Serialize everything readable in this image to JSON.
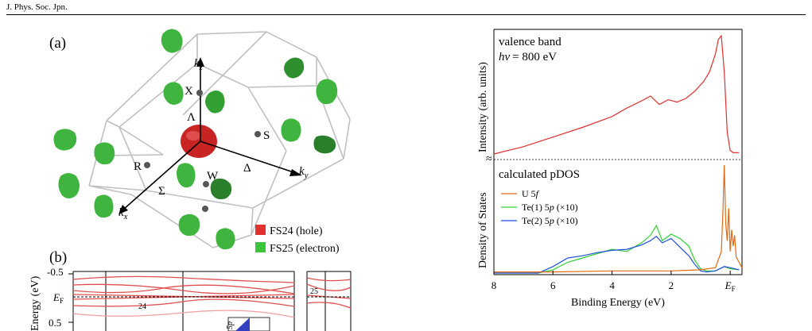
{
  "header": {
    "journal": "J. Phys. Soc. Jpn."
  },
  "panel_a": {
    "label": "(a)",
    "axes": {
      "kz": "z",
      "ky": "y",
      "kx": "x",
      "k": "k"
    },
    "points": {
      "X": "X",
      "Lambda": "Λ",
      "S": "S",
      "R": "R",
      "W": "W",
      "Delta": "Δ",
      "Sigma": "Σ"
    },
    "legend": [
      {
        "label": "FS24 (hole)",
        "color": "#e03030"
      },
      {
        "label": "FS25 (electron)",
        "color": "#3cc43c"
      }
    ]
  },
  "panel_b": {
    "label": "(b)",
    "ylabel": "Energy (eV)",
    "yticks": [
      "-0.5",
      "0.5"
    ],
    "ef_label": "E",
    "ef_sub": "F",
    "band_labels": [
      "24",
      "25"
    ],
    "cropped_text": "5p"
  },
  "chart_data": [
    {
      "type": "line",
      "title": "valence band",
      "annotation": {
        "hv_symbol": "hν",
        "hv_value": "= 800 eV"
      },
      "ylabel": "Intensity (arb. units)",
      "xlabel": "Binding Energy (eV)",
      "x_reversed": true,
      "xlim": [
        8,
        -0.4
      ],
      "series": [
        {
          "name": "",
          "color": "#e03030",
          "x": [
            8,
            7,
            6,
            5,
            4,
            3.5,
            3,
            2.7,
            2.4,
            2.1,
            1.8,
            1.5,
            1.2,
            0.9,
            0.7,
            0.5,
            0.4,
            0.3,
            0.2,
            0.1,
            0.0,
            -0.1,
            -0.3
          ],
          "y": [
            0.02,
            0.08,
            0.16,
            0.24,
            0.33,
            0.4,
            0.46,
            0.5,
            0.43,
            0.47,
            0.45,
            0.48,
            0.54,
            0.62,
            0.7,
            0.85,
            0.97,
            1.0,
            0.7,
            0.2,
            0.05,
            0.03,
            0.03
          ]
        }
      ]
    },
    {
      "type": "line",
      "title": "calculated pDOS",
      "ylabel": "Density of States",
      "xlabel": "Binding Energy (eV)",
      "x_reversed": true,
      "xlim": [
        8,
        -0.4
      ],
      "xticks": [
        "8",
        "6",
        "4",
        "2",
        "E"
      ],
      "xtick_values": [
        8,
        6,
        4,
        2,
        0
      ],
      "ef_sub": "F",
      "legend_position": "top-left",
      "series": [
        {
          "name": "U 5f",
          "name_plain": "U 5",
          "name_em": "f",
          "color": "#e06a10",
          "x": [
            8,
            6,
            4,
            2,
            1.0,
            0.5,
            0.3,
            0.25,
            0.2,
            0.15,
            0.1,
            0.05,
            0.0,
            -0.05,
            -0.1,
            -0.15,
            -0.2,
            -0.3,
            -0.4
          ],
          "y": [
            0.01,
            0.01,
            0.02,
            0.02,
            0.03,
            0.05,
            0.2,
            0.55,
            1.0,
            0.45,
            0.3,
            0.6,
            0.2,
            0.4,
            0.25,
            0.35,
            0.15,
            0.1,
            0.05
          ]
        },
        {
          "name": "Te(1) 5p (×10)",
          "name_plain": "Te(1) 5",
          "name_em": "p",
          "name_tail": " (×10)",
          "color": "#30d030",
          "x": [
            8,
            6.5,
            6.0,
            5.5,
            5.0,
            4.5,
            4.0,
            3.5,
            3.0,
            2.7,
            2.5,
            2.3,
            2.0,
            1.7,
            1.4,
            1.2,
            1.0,
            0.8,
            0.5,
            0.2,
            0.0,
            -0.3
          ],
          "y": [
            0.0,
            0.0,
            0.03,
            0.1,
            0.14,
            0.18,
            0.22,
            0.2,
            0.28,
            0.35,
            0.44,
            0.3,
            0.36,
            0.32,
            0.25,
            0.12,
            0.04,
            0.02,
            0.02,
            0.06,
            0.04,
            0.03
          ]
        },
        {
          "name": "Te(2) 5p (×10)",
          "name_plain": "Te(2) 5",
          "name_em": "p",
          "name_tail": " (×10)",
          "color": "#2050e0",
          "x": [
            8,
            6.5,
            6.0,
            5.5,
            5.0,
            4.5,
            4.0,
            3.5,
            3.0,
            2.7,
            2.5,
            2.3,
            2.0,
            1.7,
            1.4,
            1.2,
            1.0,
            0.8,
            0.5,
            0.2,
            0.0,
            -0.3
          ],
          "y": [
            0.0,
            0.0,
            0.06,
            0.14,
            0.16,
            0.19,
            0.21,
            0.22,
            0.26,
            0.3,
            0.34,
            0.28,
            0.32,
            0.24,
            0.16,
            0.08,
            0.02,
            0.01,
            0.02,
            0.06,
            0.05,
            0.03
          ]
        }
      ]
    }
  ]
}
